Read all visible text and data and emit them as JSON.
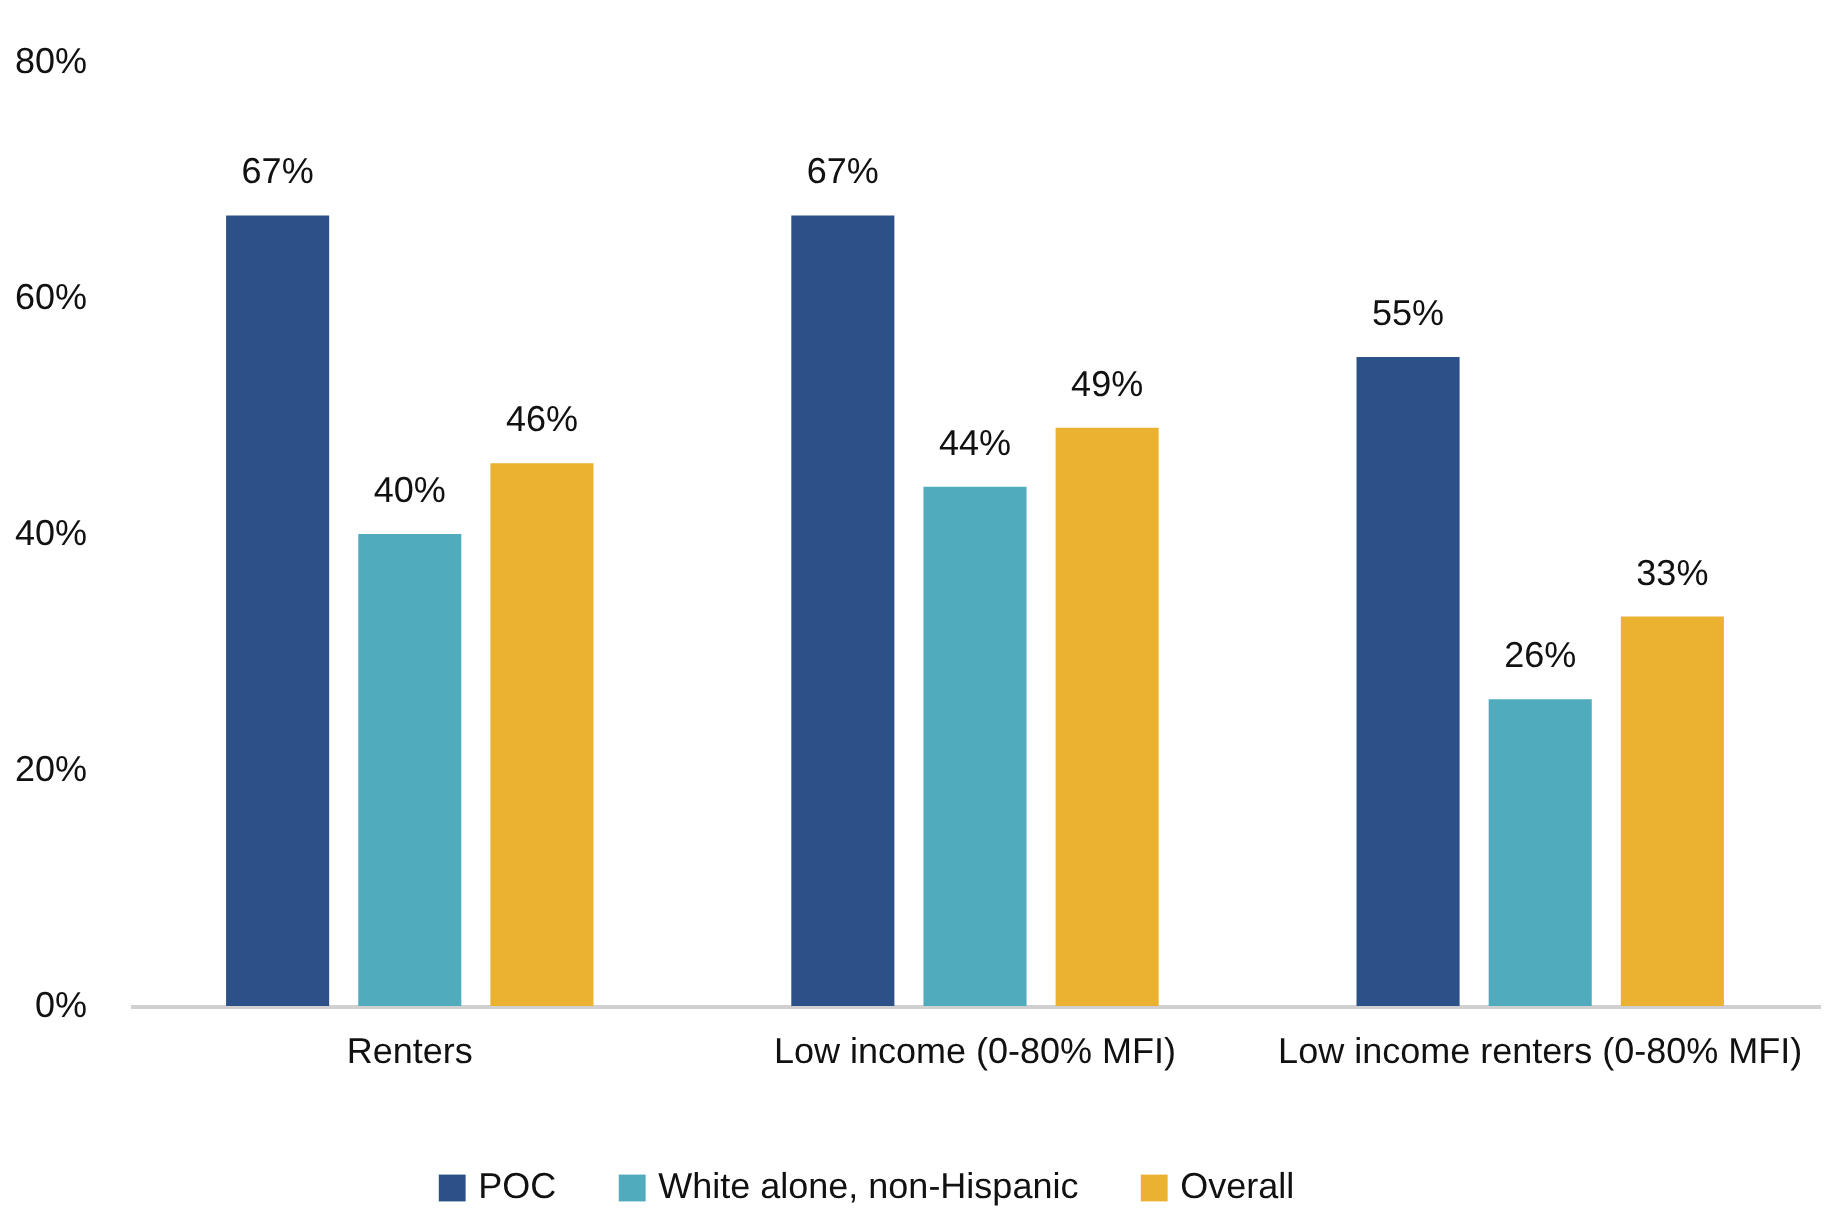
{
  "chart_data": {
    "type": "bar",
    "categories": [
      "Renters",
      "Low income (0-80% MFI)",
      "Low income renters (0-80% MFI)"
    ],
    "series": [
      {
        "name": "POC",
        "color": "#2c5088",
        "values": [
          67,
          67,
          55
        ],
        "value_labels": [
          "67%",
          "67%",
          "55%"
        ]
      },
      {
        "name": "White alone, non-Hispanic",
        "color": "#50abbc",
        "values": [
          40,
          44,
          26
        ],
        "value_labels": [
          "40%",
          "44%",
          "26%"
        ]
      },
      {
        "name": "Overall",
        "color": "#eab230",
        "values": [
          46,
          49,
          33
        ],
        "value_labels": [
          "46%",
          "49%",
          "33%"
        ]
      }
    ],
    "ylim": [
      0,
      80
    ],
    "yticks": [
      {
        "value": 0,
        "label": "0%"
      },
      {
        "value": 20,
        "label": "20%"
      },
      {
        "value": 40,
        "label": "40%"
      },
      {
        "value": 60,
        "label": "60%"
      },
      {
        "value": 80,
        "label": "80%"
      }
    ],
    "grid": false,
    "legend": "bottom"
  }
}
